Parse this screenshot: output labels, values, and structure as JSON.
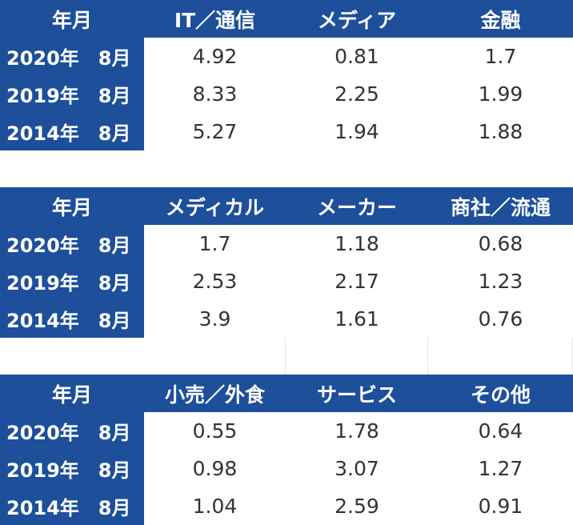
{
  "tables": [
    {
      "header": [
        "年月",
        "IT／通信",
        "メディア",
        "金融"
      ],
      "rows": [
        {
          "label": "2020年　8月",
          "values": [
            4.92,
            0.81,
            1.7
          ]
        },
        {
          "label": "2019年　8月",
          "values": [
            8.33,
            2.25,
            1.99
          ]
        },
        {
          "label": "2014年　8月",
          "values": [
            5.27,
            1.94,
            1.88
          ]
        }
      ]
    },
    {
      "header": [
        "年月",
        "メディカル",
        "メーカー",
        "商社／流通"
      ],
      "rows": [
        {
          "label": "2020年　8月",
          "values": [
            1.7,
            1.18,
            0.68
          ]
        },
        {
          "label": "2019年　8月",
          "values": [
            2.53,
            2.17,
            1.23
          ]
        },
        {
          "label": "2014年　8月",
          "values": [
            3.9,
            1.61,
            0.76
          ]
        }
      ]
    },
    {
      "header": [
        "年月",
        "小売／外食",
        "サービス",
        "その他"
      ],
      "rows": [
        {
          "label": "2020年　8月",
          "values": [
            0.55,
            1.78,
            0.64
          ]
        },
        {
          "label": "2019年　8月",
          "values": [
            0.98,
            3.07,
            1.27
          ]
        },
        {
          "label": "2014年　8月",
          "values": [
            1.04,
            2.59,
            0.91
          ]
        }
      ]
    }
  ]
}
